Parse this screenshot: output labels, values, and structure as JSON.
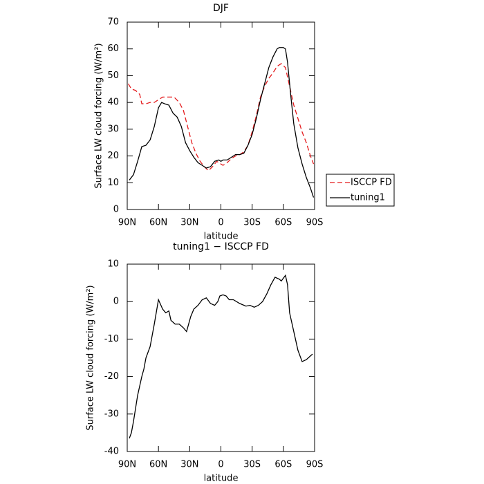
{
  "chart_data": [
    {
      "type": "line",
      "title": "DJF",
      "xlabel": "latitude",
      "ylabel": "Surface LW cloud forcing (W/m²)",
      "xlim": [
        90,
        -90
      ],
      "xticks": [
        {
          "value": 90,
          "label": "90N"
        },
        {
          "value": 60,
          "label": "60N"
        },
        {
          "value": 30,
          "label": "30N"
        },
        0,
        {
          "value": -30,
          "label": "30S"
        },
        {
          "value": -60,
          "label": "60S"
        },
        {
          "value": -90,
          "label": "90S"
        }
      ],
      "ylim": [
        0,
        70
      ],
      "yticks": [
        0,
        10,
        20,
        30,
        40,
        50,
        60,
        70
      ],
      "legend": "right",
      "series": [
        {
          "name": "ISCCP FD",
          "color": "#e41a1c",
          "dash": true,
          "x": [
            89,
            86,
            82,
            78,
            76,
            72,
            68,
            64,
            60,
            56,
            50,
            45,
            40,
            36,
            32,
            28,
            24,
            20,
            16,
            12,
            8,
            4,
            0,
            -2,
            -6,
            -10,
            -14,
            -18,
            -22,
            -26,
            -30,
            -34,
            -38,
            -42,
            -46,
            -50,
            -54,
            -58,
            -62,
            -66,
            -70,
            -74,
            -78,
            -82,
            -86,
            -89
          ],
          "values": [
            47,
            45,
            44.5,
            43,
            39.5,
            39.5,
            40,
            40,
            41,
            42,
            42,
            42,
            40,
            37,
            31,
            25,
            21,
            18,
            16,
            14.5,
            16,
            18,
            17,
            16.5,
            17.5,
            19,
            20,
            20.5,
            21.5,
            24,
            29,
            35,
            42,
            46,
            49,
            51,
            53.5,
            54.5,
            53,
            46,
            39,
            34,
            29,
            25,
            20,
            17
          ]
        },
        {
          "name": "tuning1",
          "color": "#000000",
          "dash": false,
          "x": [
            88,
            84,
            80,
            76,
            72,
            68,
            64,
            60,
            57,
            54,
            50,
            46,
            42,
            38,
            34,
            30,
            26,
            22,
            18,
            14,
            10,
            6,
            2,
            0,
            -2,
            -6,
            -10,
            -14,
            -18,
            -22,
            -26,
            -30,
            -34,
            -38,
            -42,
            -46,
            -50,
            -54,
            -56,
            -60,
            -62,
            -64,
            -67,
            -70,
            -74,
            -78,
            -82,
            -86,
            -89
          ],
          "values": [
            11,
            13,
            18,
            23.5,
            24,
            26,
            31,
            38,
            40,
            39.5,
            39,
            36,
            34.5,
            31,
            25,
            22,
            19.5,
            17.5,
            16.5,
            15.5,
            16,
            18,
            18.5,
            18,
            18.5,
            18.5,
            19.5,
            20.5,
            20.5,
            21,
            24,
            28,
            34,
            41,
            47,
            53,
            57,
            60,
            60.5,
            60.5,
            60,
            55,
            43,
            32,
            23,
            17,
            12,
            8,
            4.5
          ]
        }
      ]
    },
    {
      "type": "line",
      "title": "tuning1 − ISCCP FD",
      "xlabel": "latitude",
      "ylabel": "Surface LW cloud forcing (W/m²)",
      "xlim": [
        90,
        -90
      ],
      "xticks": [
        {
          "value": 90,
          "label": "90N"
        },
        {
          "value": 60,
          "label": "60N"
        },
        {
          "value": 30,
          "label": "30N"
        },
        0,
        {
          "value": -30,
          "label": "30S"
        },
        {
          "value": -60,
          "label": "60S"
        },
        {
          "value": -90,
          "label": "90S"
        }
      ],
      "ylim": [
        -40,
        10
      ],
      "yticks": [
        -40,
        -30,
        -20,
        -10,
        0,
        10
      ],
      "series": [
        {
          "color": "#000000",
          "x": [
            88,
            86,
            84,
            80,
            76,
            74,
            72,
            68,
            64,
            60,
            56,
            53,
            50,
            48,
            44,
            40,
            36,
            33,
            29,
            26,
            22,
            18,
            14,
            10,
            6,
            3,
            1,
            -2,
            -5,
            -8,
            -12,
            -18,
            -24,
            -28,
            -32,
            -36,
            -40,
            -44,
            -48,
            -52,
            -56,
            -58,
            -62,
            -64,
            -66,
            -70,
            -74,
            -78,
            -82,
            -86,
            -88
          ],
          "values": [
            -36.5,
            -35,
            -32,
            -25,
            -20,
            -18,
            -15,
            -12,
            -6,
            0.5,
            -2,
            -3,
            -2.5,
            -5,
            -6,
            -6,
            -7,
            -8,
            -4,
            -2,
            -1,
            0.5,
            1,
            -0.5,
            -1,
            0,
            1.5,
            1.8,
            1.5,
            0.5,
            0.5,
            -0.5,
            -1.2,
            -1,
            -1.5,
            -1,
            0,
            2,
            4.5,
            6.5,
            6,
            5.5,
            7,
            4.5,
            -3,
            -8,
            -13,
            -16,
            -15.5,
            -14.5,
            -14
          ]
        }
      ]
    }
  ]
}
